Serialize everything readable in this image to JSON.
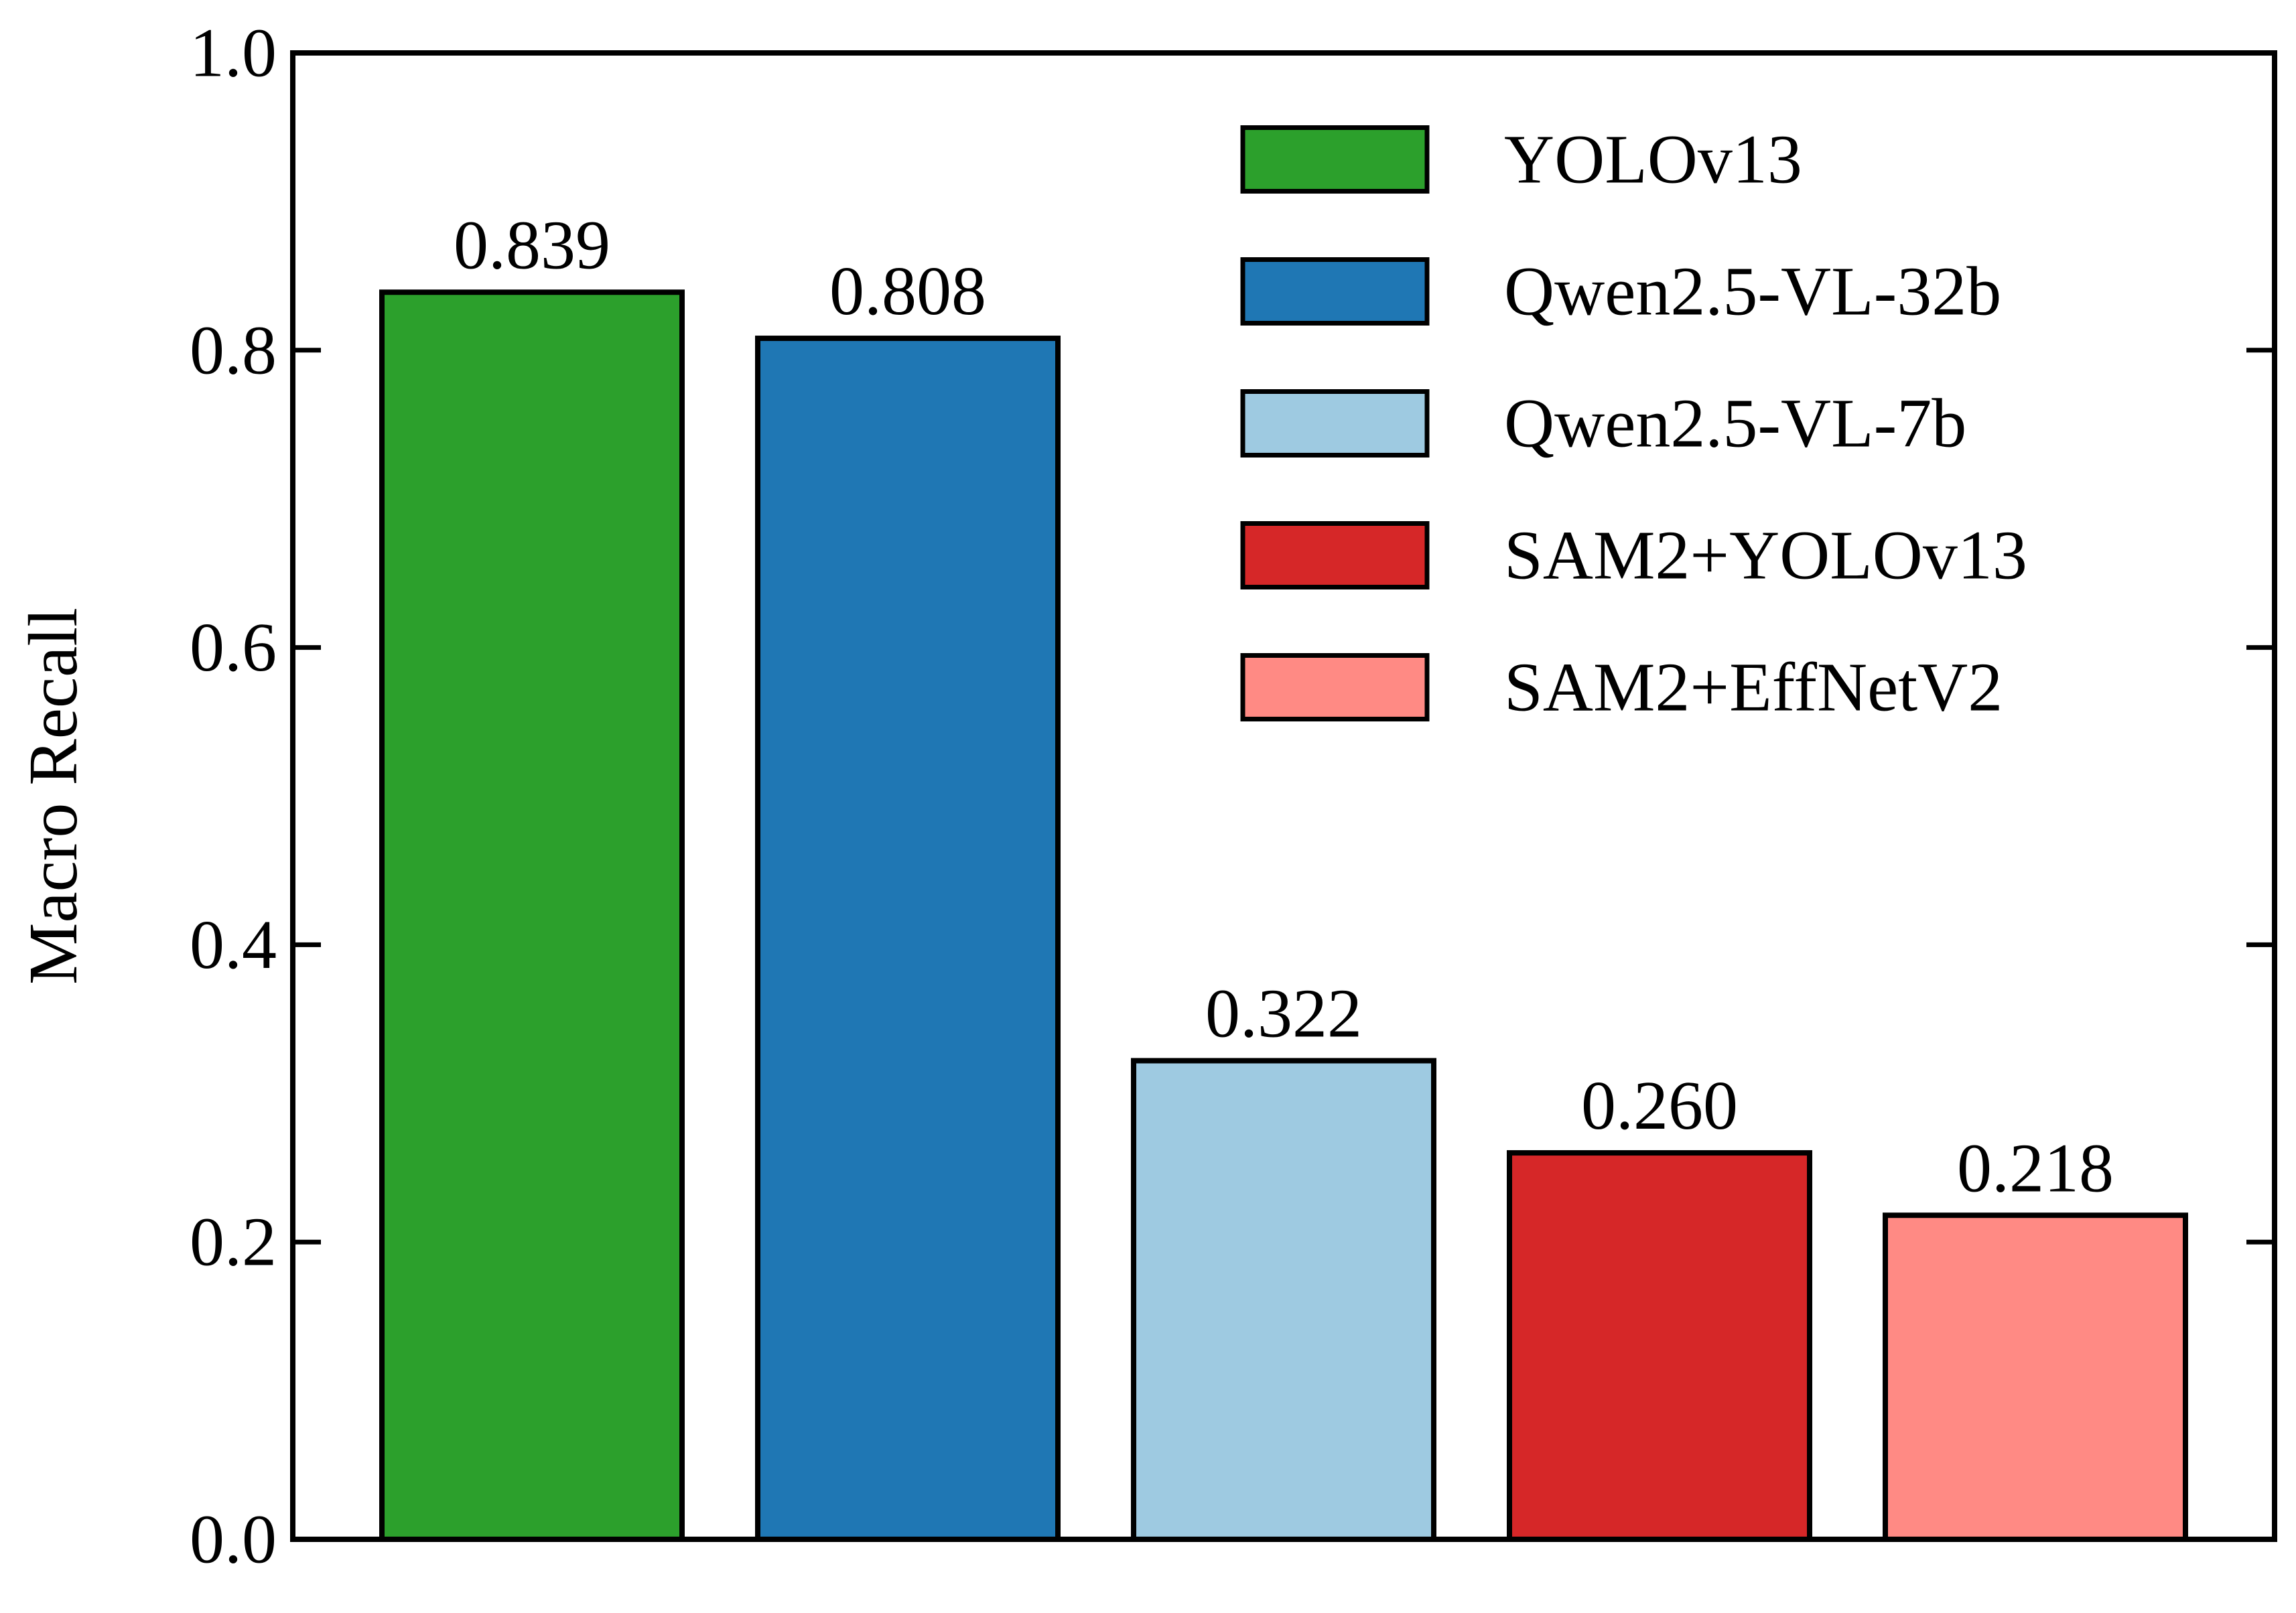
{
  "chart_data": {
    "type": "bar",
    "title": "",
    "xlabel": "",
    "ylabel": "Macro Recall",
    "ylim": [
      0,
      1.0
    ],
    "yticks": [
      0.0,
      0.2,
      0.4,
      0.6,
      0.8,
      1.0
    ],
    "ytick_labels": [
      "0.0",
      "0.2",
      "0.4",
      "0.6",
      "0.8",
      "1.0"
    ],
    "grid": false,
    "legend_position": "top-right",
    "bars": [
      {
        "name": "YOLOv13",
        "value": 0.839,
        "label": "0.839",
        "color": "#2ca02c"
      },
      {
        "name": "Qwen2.5-VL-32b",
        "value": 0.808,
        "label": "0.808",
        "color": "#1f77b4"
      },
      {
        "name": "Qwen2.5-VL-7b",
        "value": 0.322,
        "label": "0.322",
        "color": "#9ecae1"
      },
      {
        "name": "SAM2+YOLOv13",
        "value": 0.26,
        "label": "0.260",
        "color": "#d62728"
      },
      {
        "name": "SAM2+EffNetV2",
        "value": 0.218,
        "label": "0.218",
        "color": "#ff8a84"
      }
    ]
  }
}
